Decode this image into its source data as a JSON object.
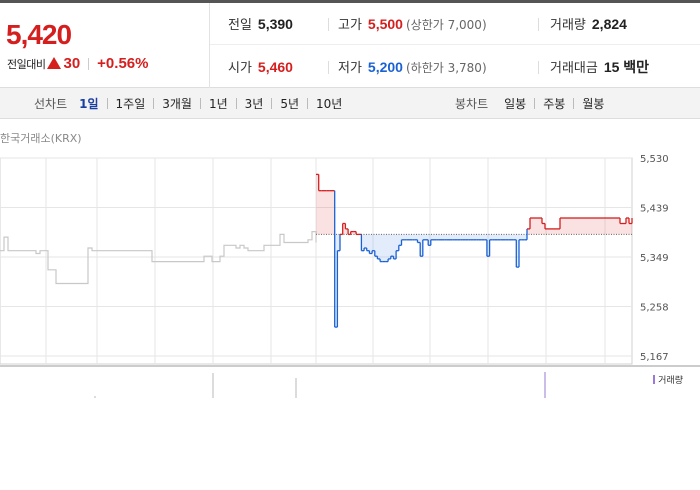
{
  "quote": {
    "price": "5,420",
    "change_label": "전일대비",
    "change_value": "30",
    "change_pct": "+0.56%"
  },
  "stats": {
    "prev_close": {
      "label": "전일",
      "value": "5,390"
    },
    "high": {
      "label": "고가",
      "value": "5,500",
      "sub": "(상한가 7,000)"
    },
    "volume": {
      "label": "거래량",
      "value": "2,824"
    },
    "open": {
      "label": "시가",
      "value": "5,460"
    },
    "low": {
      "label": "저가",
      "value": "5,200",
      "sub": "(하한가 3,780)"
    },
    "amount": {
      "label": "거래대금",
      "value": "15 백만"
    }
  },
  "line_tabs": {
    "label": "선차트",
    "items": [
      "1일",
      "1주일",
      "3개월",
      "1년",
      "3년",
      "5년",
      "10년"
    ],
    "active": 0
  },
  "candle_tabs": {
    "label": "봉차트",
    "items": [
      "일봉",
      "주봉",
      "월봉"
    ]
  },
  "exchange": "한국거래소(KRX)",
  "volume_legend": "거래량",
  "colors": {
    "up": "#d51e1e",
    "down": "#1a62d4",
    "grid": "#e6e6e6",
    "prev_day_line": "#c8c8c8"
  },
  "chart_data": {
    "type": "line",
    "ylim": [
      5167,
      5530
    ],
    "yticks": [
      "5,530",
      "5,439",
      "5,349",
      "5,258",
      "5,167"
    ],
    "base_price": 5390,
    "prev_day": {
      "x": [
        0,
        1,
        2,
        3,
        4,
        5,
        6,
        7,
        8,
        9,
        10,
        11,
        12,
        13,
        14,
        15,
        16,
        17,
        18,
        19,
        20,
        21,
        22,
        23,
        24,
        25,
        26,
        27,
        28,
        29,
        30,
        31,
        32,
        33,
        34,
        35,
        36,
        37,
        38,
        39,
        40,
        41,
        42,
        43,
        44,
        45,
        46,
        47,
        48,
        49,
        50,
        51,
        52,
        53,
        54,
        55,
        56,
        57,
        58,
        59,
        60,
        61,
        62,
        63,
        64,
        65,
        66,
        67,
        68,
        69,
        70,
        71,
        72,
        73,
        74,
        75,
        76,
        77,
        78,
        79
      ],
      "y": [
        5360,
        5385,
        5360,
        5360,
        5360,
        5360,
        5360,
        5360,
        5360,
        5355,
        5360,
        5360,
        5325,
        5325,
        5300,
        5300,
        5300,
        5300,
        5300,
        5300,
        5300,
        5300,
        5365,
        5360,
        5360,
        5360,
        5360,
        5360,
        5360,
        5360,
        5360,
        5360,
        5360,
        5360,
        5360,
        5360,
        5360,
        5360,
        5340,
        5340,
        5340,
        5340,
        5340,
        5340,
        5340,
        5340,
        5340,
        5340,
        5340,
        5340,
        5340,
        5350,
        5350,
        5340,
        5340,
        5350,
        5370,
        5370,
        5370,
        5365,
        5370,
        5365,
        5360,
        5360,
        5360,
        5360,
        5370,
        5370,
        5370,
        5370,
        5390,
        5375,
        5375,
        5375,
        5375,
        5375,
        5375,
        5380,
        5395,
        5375
      ]
    },
    "today": {
      "x": [
        0,
        1,
        2,
        3,
        4,
        5,
        6,
        7,
        8,
        9,
        10,
        11,
        12,
        13,
        14,
        15,
        16,
        17,
        18,
        19,
        20,
        21,
        22,
        23,
        24,
        25,
        26,
        27,
        28,
        29,
        30,
        31,
        32,
        33,
        34,
        35,
        36,
        37,
        38,
        39,
        40,
        41,
        42,
        43,
        44,
        45,
        46,
        47,
        48,
        49,
        50,
        51,
        52,
        53,
        54,
        55,
        56,
        57,
        58,
        59,
        60,
        61,
        62,
        63,
        64,
        65,
        66,
        67,
        68,
        69,
        70,
        71,
        72,
        73,
        74,
        75,
        76,
        77,
        78,
        79
      ],
      "y": [
        5500,
        5470,
        5470,
        5470,
        5470,
        5470,
        5470,
        5220,
        5360,
        5390,
        5410,
        5400,
        5390,
        5395,
        5395,
        5390,
        5390,
        5360,
        5365,
        5360,
        5355,
        5360,
        5350,
        5345,
        5340,
        5340,
        5340,
        5345,
        5350,
        5345,
        5360,
        5370,
        5380,
        5380,
        5380,
        5380,
        5380,
        5380,
        5375,
        5350,
        5380,
        5380,
        5370,
        5380,
        5380,
        5380,
        5380,
        5380,
        5380,
        5380,
        5380,
        5380,
        5380,
        5380,
        5380,
        5380,
        5380,
        5380,
        5380,
        5380,
        5380,
        5380,
        5380,
        5380,
        5350,
        5380,
        5380,
        5380,
        5380,
        5380,
        5380,
        5380,
        5380,
        5380,
        5380,
        5330,
        5380,
        5380,
        5380,
        5380
      ]
    },
    "today_tail": {
      "x": [
        0,
        1,
        2,
        3,
        4,
        5,
        6,
        7,
        8,
        9,
        10,
        11,
        12,
        13,
        14,
        15,
        16,
        17,
        18,
        19,
        20,
        21,
        22,
        23,
        24,
        25,
        26,
        27,
        28,
        29,
        30,
        31,
        32,
        33,
        34,
        35
      ],
      "y": [
        5400,
        5420,
        5420,
        5420,
        5420,
        5410,
        5400,
        5400,
        5400,
        5400,
        5400,
        5420,
        5420,
        5420,
        5420,
        5420,
        5420,
        5420,
        5420,
        5420,
        5420,
        5420,
        5420,
        5420,
        5420,
        5420,
        5420,
        5420,
        5420,
        5420,
        5420,
        5410,
        5410,
        5420,
        5410,
        5420
      ]
    },
    "volume": [
      0,
      0,
      0,
      0,
      0,
      0,
      0,
      0,
      0,
      0,
      0,
      0,
      0,
      0,
      0,
      0,
      0,
      0,
      0,
      0,
      0,
      0,
      0,
      0,
      0,
      0,
      0,
      0,
      0,
      0,
      0,
      0,
      0,
      0,
      0,
      0,
      0,
      0,
      0,
      0,
      0,
      0,
      0,
      0,
      0,
      0,
      0,
      0,
      0,
      0,
      0,
      0,
      0,
      0,
      0,
      0,
      0,
      0,
      0,
      0,
      0,
      0,
      0,
      0,
      0,
      0,
      0,
      0,
      0,
      0,
      0,
      0,
      0,
      0,
      0,
      0,
      0,
      0,
      0,
      0
    ]
  }
}
